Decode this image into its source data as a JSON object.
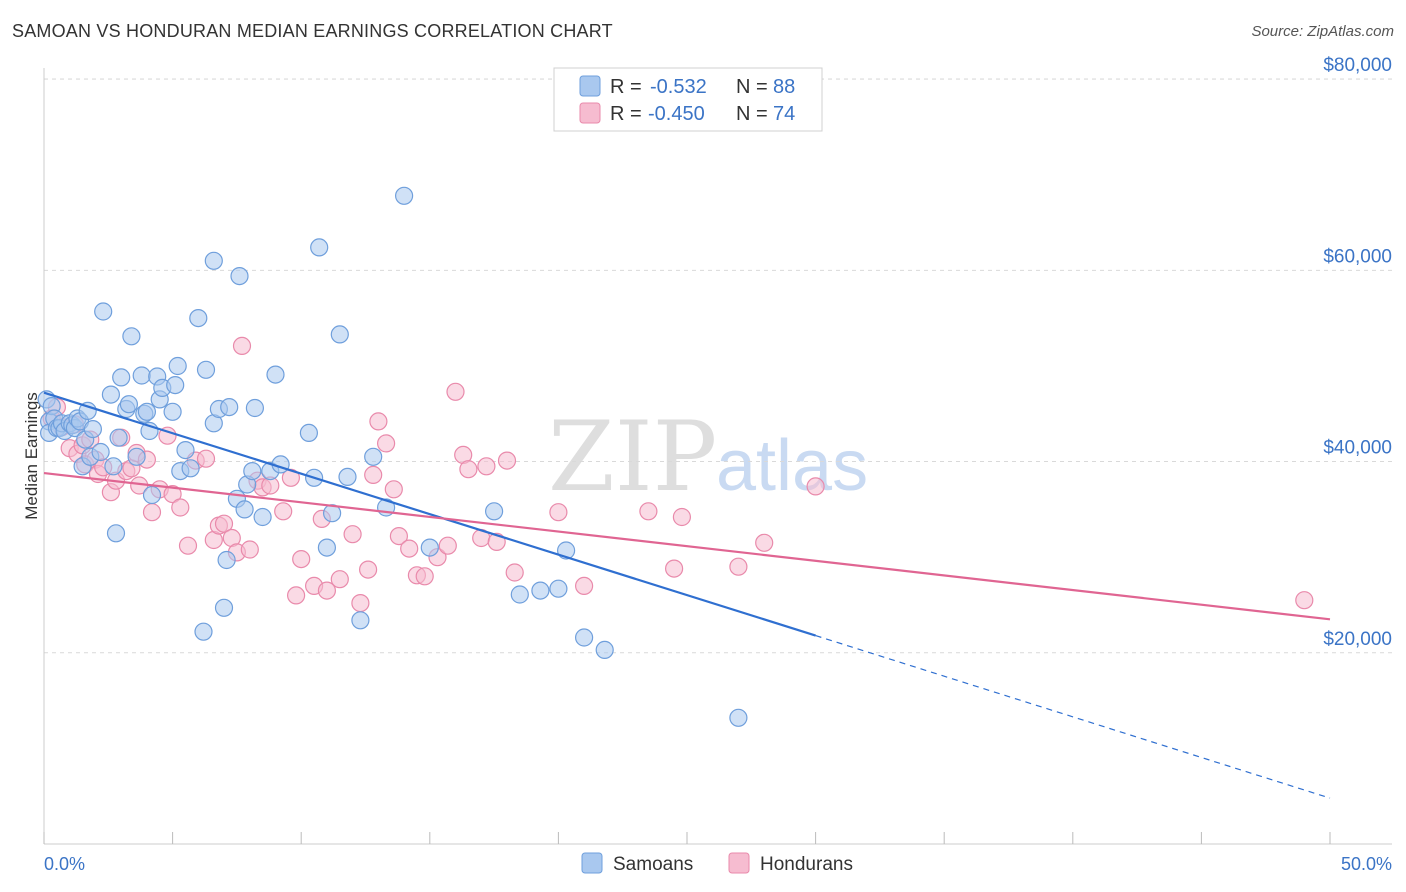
{
  "header": {
    "title": "SAMOAN VS HONDURAN MEDIAN EARNINGS CORRELATION CHART",
    "source": "Source: ZipAtlas.com"
  },
  "watermark": {
    "zip": "ZIP",
    "atlas": "atlas"
  },
  "legend_top": {
    "r_label": "R =",
    "n_label": "N =",
    "samoans": {
      "r": "-0.532",
      "n": "88"
    },
    "hondurans": {
      "r": "-0.450",
      "n": "74"
    }
  },
  "colors": {
    "samoans_fill": "#a9c8ef",
    "samoans_stroke": "#6f9fdc",
    "samoans_line": "#2f6fd0",
    "hondurans_fill": "#f6bcd0",
    "hondurans_stroke": "#e98aab",
    "hondurans_line": "#e06592",
    "tick_text": "#3b74c6",
    "grid": "#d9d9d9"
  },
  "chart_data": {
    "type": "scatter",
    "title": "SAMOAN VS HONDURAN MEDIAN EARNINGS CORRELATION CHART",
    "xlabel": "",
    "ylabel": "Median Earnings",
    "xlim": [
      0,
      50
    ],
    "ylim": [
      0,
      82000
    ],
    "x_tick_labels": [
      "0.0%",
      "50.0%"
    ],
    "y_ticks": [
      {
        "value": 20000,
        "label": "$20,000"
      },
      {
        "value": 40000,
        "label": "$40,000"
      },
      {
        "value": 60000,
        "label": "$60,000"
      },
      {
        "value": 80000,
        "label": "$80,000"
      }
    ],
    "legend": [
      "Samoans",
      "Hondurans"
    ],
    "series": [
      {
        "name": "Samoans",
        "points": [
          [
            0.1,
            46500
          ],
          [
            0.2,
            44200
          ],
          [
            0.2,
            43000
          ],
          [
            0.3,
            45800
          ],
          [
            0.4,
            44500
          ],
          [
            0.5,
            43500
          ],
          [
            0.6,
            43500
          ],
          [
            0.7,
            44000
          ],
          [
            0.8,
            43200
          ],
          [
            1.0,
            44000
          ],
          [
            1.1,
            43800
          ],
          [
            1.2,
            43500
          ],
          [
            1.3,
            44500
          ],
          [
            1.4,
            44200
          ],
          [
            1.5,
            39500
          ],
          [
            1.6,
            42300
          ],
          [
            1.7,
            45300
          ],
          [
            1.8,
            40500
          ],
          [
            1.9,
            43400
          ],
          [
            2.2,
            41000
          ],
          [
            2.3,
            55700
          ],
          [
            2.6,
            47000
          ],
          [
            2.7,
            39500
          ],
          [
            2.8,
            32500
          ],
          [
            2.9,
            42500
          ],
          [
            3.0,
            48800
          ],
          [
            3.2,
            45500
          ],
          [
            3.3,
            46000
          ],
          [
            3.4,
            53100
          ],
          [
            3.6,
            40500
          ],
          [
            3.8,
            49000
          ],
          [
            3.9,
            45000
          ],
          [
            4.0,
            45200
          ],
          [
            4.1,
            43200
          ],
          [
            4.2,
            36500
          ],
          [
            4.4,
            48900
          ],
          [
            4.5,
            46500
          ],
          [
            4.6,
            47700
          ],
          [
            5.0,
            45200
          ],
          [
            5.1,
            48000
          ],
          [
            5.2,
            50000
          ],
          [
            5.3,
            39000
          ],
          [
            5.5,
            41200
          ],
          [
            5.7,
            39300
          ],
          [
            6.0,
            55000
          ],
          [
            6.2,
            22200
          ],
          [
            6.3,
            49600
          ],
          [
            6.6,
            44000
          ],
          [
            6.6,
            61000
          ],
          [
            6.8,
            45500
          ],
          [
            7.0,
            24700
          ],
          [
            7.1,
            29700
          ],
          [
            7.2,
            45700
          ],
          [
            7.5,
            36100
          ],
          [
            7.6,
            59400
          ],
          [
            7.8,
            35000
          ],
          [
            7.9,
            37600
          ],
          [
            8.1,
            39000
          ],
          [
            8.2,
            45600
          ],
          [
            8.5,
            34200
          ],
          [
            8.8,
            39000
          ],
          [
            9.0,
            49100
          ],
          [
            9.2,
            39700
          ],
          [
            10.3,
            43000
          ],
          [
            10.5,
            38300
          ],
          [
            10.7,
            62400
          ],
          [
            11.0,
            31000
          ],
          [
            11.2,
            34600
          ],
          [
            11.5,
            53300
          ],
          [
            11.8,
            38400
          ],
          [
            12.3,
            23400
          ],
          [
            12.8,
            40500
          ],
          [
            13.3,
            35200
          ],
          [
            14.0,
            67800
          ],
          [
            15.0,
            31000
          ],
          [
            17.5,
            34800
          ],
          [
            18.5,
            26100
          ],
          [
            19.3,
            26500
          ],
          [
            20.0,
            26700
          ],
          [
            20.3,
            30700
          ],
          [
            21.0,
            21600
          ],
          [
            21.8,
            20300
          ],
          [
            27.0,
            13200
          ]
        ]
      },
      {
        "name": "Hondurans",
        "points": [
          [
            0.3,
            44500
          ],
          [
            0.5,
            45700
          ],
          [
            0.7,
            43600
          ],
          [
            1.0,
            41400
          ],
          [
            1.2,
            43900
          ],
          [
            1.3,
            40800
          ],
          [
            1.5,
            41700
          ],
          [
            1.6,
            39700
          ],
          [
            1.8,
            42300
          ],
          [
            2.0,
            40200
          ],
          [
            2.1,
            38700
          ],
          [
            2.3,
            39400
          ],
          [
            2.6,
            36800
          ],
          [
            2.8,
            38000
          ],
          [
            3.0,
            42500
          ],
          [
            3.2,
            39000
          ],
          [
            3.4,
            39300
          ],
          [
            3.6,
            40900
          ],
          [
            3.7,
            37500
          ],
          [
            4.0,
            40200
          ],
          [
            4.2,
            34700
          ],
          [
            4.5,
            37100
          ],
          [
            4.8,
            42700
          ],
          [
            5.0,
            36600
          ],
          [
            5.3,
            35200
          ],
          [
            5.6,
            31200
          ],
          [
            5.9,
            40100
          ],
          [
            6.3,
            40300
          ],
          [
            6.6,
            31800
          ],
          [
            6.8,
            33300
          ],
          [
            7.0,
            33500
          ],
          [
            7.3,
            32000
          ],
          [
            7.5,
            30500
          ],
          [
            7.7,
            52100
          ],
          [
            8.0,
            30800
          ],
          [
            8.3,
            38000
          ],
          [
            8.5,
            37300
          ],
          [
            8.8,
            37500
          ],
          [
            9.3,
            34800
          ],
          [
            9.6,
            38300
          ],
          [
            9.8,
            26000
          ],
          [
            10.0,
            29800
          ],
          [
            10.5,
            27000
          ],
          [
            10.8,
            34000
          ],
          [
            11.0,
            26500
          ],
          [
            11.5,
            27700
          ],
          [
            12.0,
            32400
          ],
          [
            12.3,
            25200
          ],
          [
            12.6,
            28700
          ],
          [
            12.8,
            38600
          ],
          [
            13.0,
            44200
          ],
          [
            13.3,
            41900
          ],
          [
            13.6,
            37100
          ],
          [
            13.8,
            32200
          ],
          [
            14.2,
            30900
          ],
          [
            14.5,
            28100
          ],
          [
            14.8,
            28000
          ],
          [
            15.3,
            30000
          ],
          [
            15.7,
            31200
          ],
          [
            16.0,
            47300
          ],
          [
            16.3,
            40700
          ],
          [
            16.5,
            39200
          ],
          [
            17.0,
            32000
          ],
          [
            17.2,
            39500
          ],
          [
            17.6,
            31600
          ],
          [
            18.0,
            40100
          ],
          [
            18.3,
            28400
          ],
          [
            20.0,
            34700
          ],
          [
            21.0,
            27000
          ],
          [
            23.5,
            34800
          ],
          [
            24.5,
            28800
          ],
          [
            24.8,
            34200
          ],
          [
            27.0,
            29000
          ],
          [
            28.0,
            31500
          ],
          [
            30.0,
            37400
          ],
          [
            49.0,
            25500
          ]
        ]
      }
    ],
    "trend_lines": [
      {
        "series": "Samoans",
        "x_start": 0,
        "y_start": 47200,
        "x_solid_end": 30,
        "y_solid_end": 21800,
        "x_dash_end": 50,
        "y_dash_end": 4800
      },
      {
        "series": "Hondurans",
        "x_start": 0,
        "y_start": 38800,
        "x_end": 50,
        "y_end": 23500
      }
    ]
  }
}
